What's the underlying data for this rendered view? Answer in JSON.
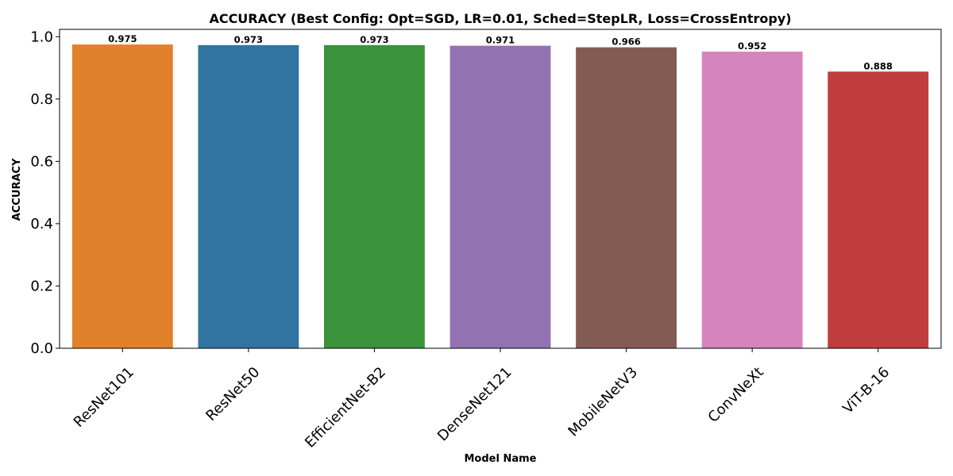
{
  "chart_data": {
    "type": "bar",
    "title": "ACCURACY (Best Config: Opt=SGD, LR=0.01, Sched=StepLR, Loss=CrossEntropy)",
    "xlabel": "Model Name",
    "ylabel": "ACCURACY",
    "categories": [
      "ResNet101",
      "ResNet50",
      "EfficientNet-B2",
      "DenseNet121",
      "MobileNetV3",
      "ConvNeXt",
      "ViT-B-16"
    ],
    "values": [
      0.975,
      0.973,
      0.973,
      0.971,
      0.966,
      0.952,
      0.888
    ],
    "value_labels": [
      "0.975",
      "0.973",
      "0.973",
      "0.971",
      "0.966",
      "0.952",
      "0.888"
    ],
    "colors": [
      "#e1812c",
      "#3274a1",
      "#3a923a",
      "#9372b2",
      "#845b53",
      "#d584bd",
      "#c03d3e"
    ],
    "yticks": [
      0.0,
      0.2,
      0.4,
      0.6,
      0.8,
      1.0
    ],
    "ytick_labels": [
      "0.0",
      "0.2",
      "0.4",
      "0.6",
      "0.8",
      "1.0"
    ],
    "ylim": [
      0,
      1.0236
    ],
    "grid": false,
    "legend": "none"
  }
}
